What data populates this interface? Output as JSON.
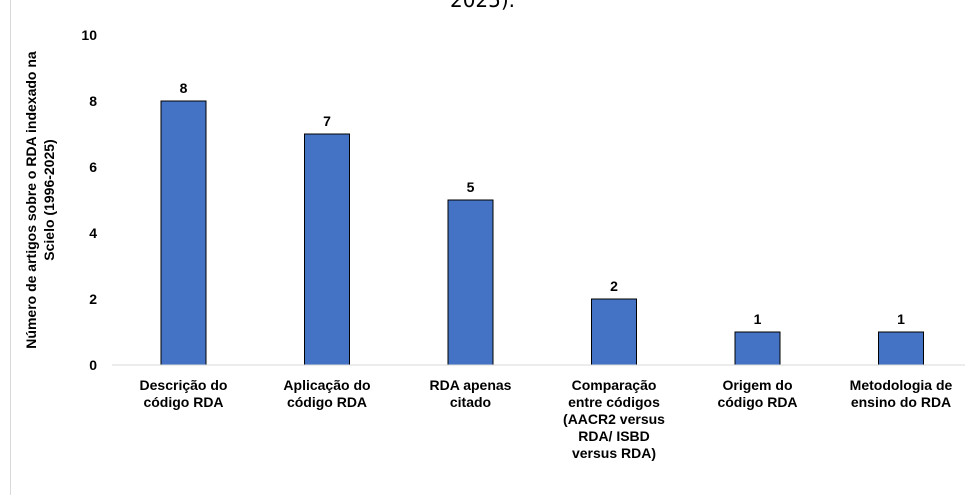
{
  "page": {
    "title_fragment": "2025)."
  },
  "chart_data": {
    "type": "bar",
    "title": "",
    "xlabel": "",
    "ylabel_lines": [
      "Número de artigos sobre o RDA indexado na",
      "Scielo (1996-2025)"
    ],
    "ylim": [
      0,
      10
    ],
    "yticks": [
      0,
      2,
      4,
      6,
      8,
      10
    ],
    "grid": false,
    "bar_color": "#4472c4",
    "categories": [
      [
        "Descrição do",
        "código RDA"
      ],
      [
        "Aplicação do",
        "código RDA"
      ],
      [
        "RDA apenas",
        "citado"
      ],
      [
        "Comparação",
        "entre códigos",
        "(AACR2 versus",
        "RDA/ ISBD",
        "versus RDA)"
      ],
      [
        "Origem do",
        "código RDA"
      ],
      [
        "Metodologia de",
        "ensino do RDA"
      ]
    ],
    "values": [
      8,
      7,
      5,
      2,
      1,
      1
    ],
    "data_labels": [
      "8",
      "7",
      "5",
      "2",
      "1",
      "1"
    ]
  }
}
